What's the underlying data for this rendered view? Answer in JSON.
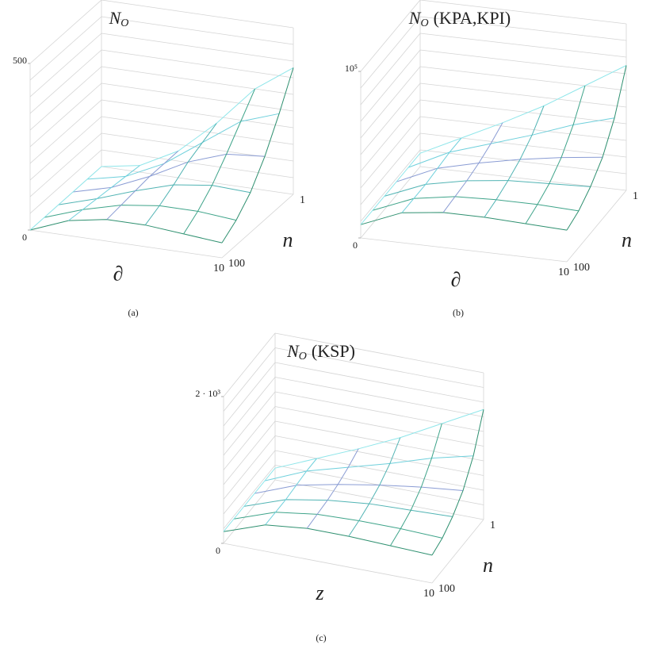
{
  "chart_data": [
    {
      "type": "surface3d",
      "panel": "(a)",
      "title": {
        "main": "N",
        "sub": "O",
        "rest": ""
      },
      "xlabel": "∂",
      "ylabel": "n",
      "x": [
        0,
        2,
        4,
        6,
        8,
        10
      ],
      "y": [
        1,
        2.5,
        6.3,
        16,
        40,
        100
      ],
      "z": [
        [
          0,
          20,
          80,
          180,
          300,
          380
        ],
        [
          0,
          25,
          80,
          160,
          240,
          280
        ],
        [
          0,
          30,
          80,
          140,
          180,
          190
        ],
        [
          0,
          35,
          75,
          110,
          125,
          120
        ],
        [
          0,
          40,
          70,
          85,
          85,
          75
        ],
        [
          0,
          45,
          65,
          65,
          55,
          45
        ]
      ],
      "xlim": [
        0,
        10
      ],
      "xticks": [
        10
      ],
      "ylim": [
        100,
        1
      ],
      "yticks": [
        100,
        1
      ],
      "ylog": true,
      "zlim": [
        0,
        500
      ],
      "zticks": [
        0,
        500
      ],
      "colors": [
        "#8fe6ea",
        "#6fd0dc",
        "#8a9cd4",
        "#52b4b4",
        "#3fa48a",
        "#2f9070"
      ]
    },
    {
      "type": "surface3d",
      "panel": "(b)",
      "title": {
        "main": "N",
        "sub": "O",
        "rest": "(KPA,KPI)"
      },
      "xlabel": "∂",
      "ylabel": "n",
      "x": [
        0,
        2,
        4,
        6,
        8,
        10
      ],
      "y": [
        1,
        2.5,
        6.3,
        16,
        40,
        100
      ],
      "z": [
        [
          8000,
          20000,
          32000,
          45000,
          60000,
          75000
        ],
        [
          8000,
          20000,
          28000,
          36000,
          45000,
          52000
        ],
        [
          8000,
          19000,
          25000,
          30000,
          34000,
          37000
        ],
        [
          8000,
          18000,
          23000,
          26000,
          27000,
          28000
        ],
        [
          8000,
          18000,
          22000,
          23000,
          23000,
          22000
        ],
        [
          8000,
          18000,
          21000,
          21000,
          20000,
          19000
        ]
      ],
      "xlim": [
        0,
        10
      ],
      "xticks": [
        10
      ],
      "ylim": [
        100,
        1
      ],
      "yticks": [
        100,
        1
      ],
      "ylog": true,
      "zlim": [
        0,
        100000
      ],
      "zticks": [
        0,
        {
          "value": 100000,
          "label": "10⁵"
        }
      ],
      "colors": [
        "#8fe6ea",
        "#6fd0dc",
        "#8a9cd4",
        "#52b4b4",
        "#3fa48a",
        "#2f9070"
      ]
    },
    {
      "type": "surface3d",
      "panel": "(c)",
      "title": {
        "main": "N",
        "sub": "O",
        "rest": "(KSP)"
      },
      "xlabel": "z",
      "ylabel": "n",
      "x": [
        0,
        2,
        4,
        6,
        8,
        10
      ],
      "y": [
        1,
        2.5,
        6.3,
        16,
        40,
        100
      ],
      "z": [
        [
          160,
          400,
          640,
          900,
          1200,
          1500
        ],
        [
          160,
          400,
          560,
          720,
          900,
          1040
        ],
        [
          160,
          380,
          500,
          600,
          680,
          740
        ],
        [
          160,
          360,
          460,
          520,
          540,
          560
        ],
        [
          160,
          360,
          440,
          460,
          460,
          440
        ],
        [
          160,
          360,
          420,
          420,
          400,
          380
        ]
      ],
      "xlim": [
        0,
        10
      ],
      "xticks": [
        10
      ],
      "ylim": [
        100,
        1
      ],
      "yticks": [
        100,
        1
      ],
      "ylog": true,
      "zlim": [
        0,
        2000
      ],
      "zticks": [
        0,
        {
          "value": 2000,
          "label": "2 · 10³"
        }
      ],
      "colors": [
        "#8fe6ea",
        "#6fd0dc",
        "#8a9cd4",
        "#52b4b4",
        "#3fa48a",
        "#2f9070"
      ]
    }
  ]
}
